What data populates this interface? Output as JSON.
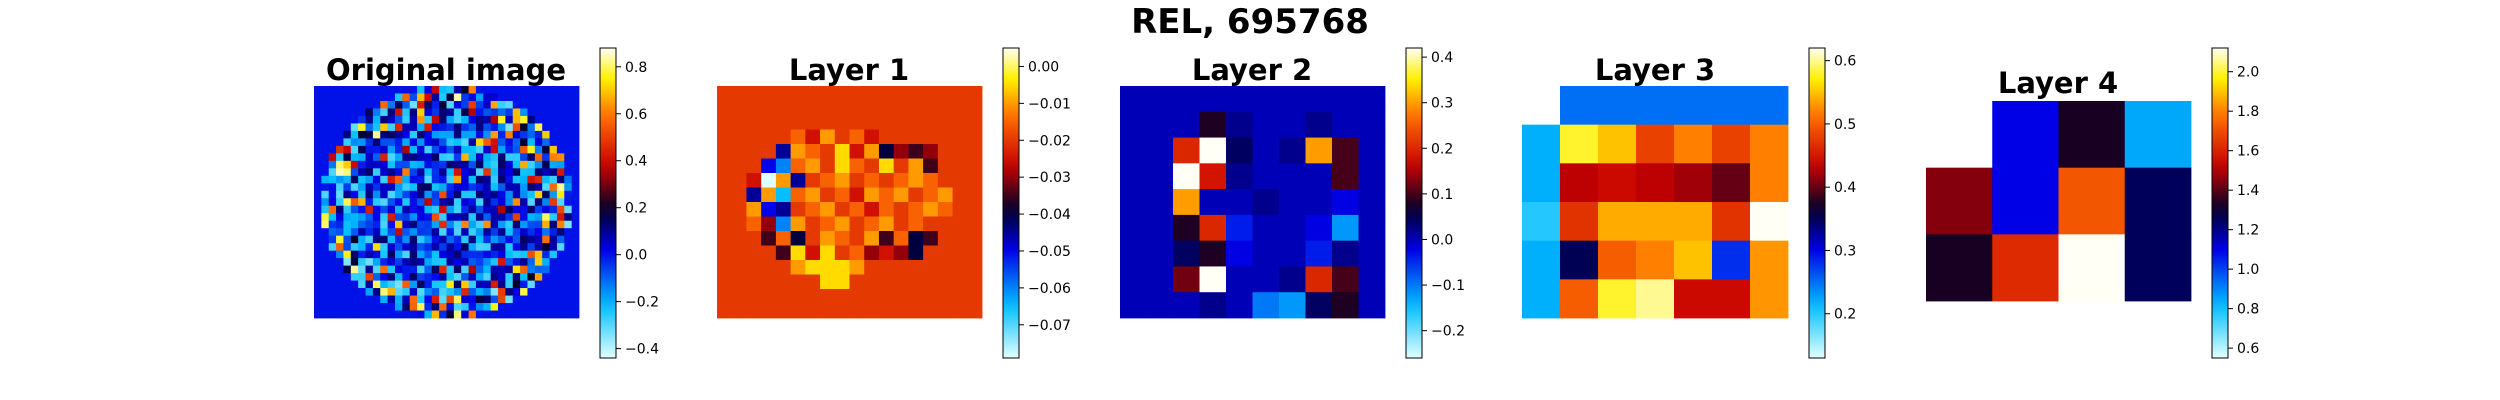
{
  "figure": {
    "title": "REL, 695768"
  },
  "chart_data": [
    {
      "type": "heatmap",
      "title": "Original image",
      "grid_on": false,
      "colorbar": {
        "range": [
          -0.44,
          0.88
        ],
        "ticks": [
          -0.4,
          -0.2,
          0.0,
          0.2,
          0.4,
          0.6,
          0.8
        ],
        "tick_labels": [
          "−0.4",
          "−0.2",
          "0.0",
          "0.2",
          "0.4",
          "0.6",
          "0.8"
        ]
      },
      "background_value": 0.0,
      "rows": 31,
      "cols": 36,
      "values": []
    },
    {
      "type": "heatmap",
      "title": "Layer 1",
      "grid_on": false,
      "colorbar": {
        "range": [
          -0.079,
          0.005
        ],
        "ticks": [
          0.0,
          -0.01,
          -0.02,
          -0.03,
          -0.04,
          -0.05,
          -0.06,
          -0.07
        ],
        "tick_labels": [
          "0.00",
          "−0.01",
          "−0.02",
          "−0.03",
          "−0.04",
          "−0.05",
          "−0.06",
          "−0.07"
        ]
      },
      "rows": 16,
      "cols": 18,
      "values": [
        [
          -0.02,
          -0.02,
          -0.02,
          -0.02,
          -0.02,
          -0.02,
          -0.02,
          -0.02,
          -0.02,
          -0.02,
          -0.02,
          -0.02,
          -0.02,
          -0.02,
          -0.02,
          -0.02,
          -0.02,
          -0.02
        ],
        [
          -0.02,
          -0.02,
          -0.02,
          -0.02,
          -0.02,
          -0.02,
          -0.02,
          -0.02,
          -0.02,
          -0.02,
          -0.02,
          -0.02,
          -0.02,
          -0.02,
          -0.02,
          -0.02,
          -0.02,
          -0.02
        ],
        [
          -0.02,
          -0.02,
          -0.02,
          -0.02,
          -0.02,
          -0.02,
          -0.02,
          -0.02,
          -0.02,
          -0.02,
          -0.02,
          -0.02,
          -0.02,
          -0.02,
          -0.02,
          -0.02,
          -0.02,
          -0.02
        ],
        [
          -0.02,
          -0.02,
          -0.02,
          -0.02,
          -0.02,
          -0.015,
          -0.025,
          -0.01,
          -0.02,
          -0.015,
          -0.025,
          -0.02,
          -0.02,
          -0.02,
          -0.02,
          -0.02,
          -0.02,
          -0.02
        ],
        [
          -0.02,
          -0.02,
          -0.02,
          -0.02,
          -0.045,
          -0.01,
          -0.015,
          -0.02,
          -0.005,
          -0.025,
          -0.01,
          -0.04,
          -0.03,
          -0.035,
          -0.03,
          -0.02,
          -0.02,
          -0.02
        ],
        [
          -0.02,
          -0.02,
          -0.02,
          -0.05,
          -0.06,
          -0.015,
          -0.01,
          -0.02,
          -0.005,
          -0.015,
          -0.02,
          -0.005,
          -0.02,
          -0.01,
          -0.035,
          -0.02,
          -0.02,
          -0.02
        ],
        [
          -0.02,
          -0.02,
          -0.025,
          -0.08,
          -0.01,
          -0.045,
          -0.02,
          -0.015,
          -0.01,
          -0.02,
          -0.015,
          -0.02,
          -0.015,
          -0.01,
          -0.015,
          -0.02,
          -0.02,
          -0.02
        ],
        [
          -0.02,
          -0.02,
          -0.045,
          -0.01,
          -0.065,
          -0.015,
          -0.01,
          -0.02,
          -0.015,
          -0.025,
          -0.01,
          -0.015,
          -0.01,
          -0.02,
          -0.015,
          -0.01,
          -0.02,
          -0.02
        ],
        [
          -0.02,
          -0.02,
          -0.01,
          -0.05,
          -0.045,
          -0.02,
          -0.015,
          -0.01,
          -0.02,
          -0.015,
          -0.025,
          -0.015,
          -0.02,
          -0.015,
          -0.01,
          -0.015,
          -0.02,
          -0.02
        ],
        [
          -0.02,
          -0.02,
          -0.015,
          -0.03,
          -0.06,
          -0.01,
          -0.02,
          -0.015,
          -0.01,
          -0.02,
          -0.015,
          -0.01,
          -0.02,
          -0.015,
          -0.02,
          -0.02,
          -0.02,
          -0.02
        ],
        [
          -0.02,
          -0.02,
          -0.02,
          -0.035,
          -0.015,
          -0.04,
          -0.02,
          -0.01,
          -0.015,
          -0.02,
          -0.01,
          -0.035,
          -0.015,
          -0.04,
          -0.035,
          -0.02,
          -0.02,
          -0.02
        ],
        [
          -0.02,
          -0.02,
          -0.02,
          -0.02,
          -0.035,
          -0.005,
          -0.025,
          -0.005,
          -0.02,
          -0.015,
          -0.03,
          -0.025,
          -0.03,
          -0.04,
          -0.02,
          -0.02,
          -0.02,
          -0.02
        ],
        [
          -0.02,
          -0.02,
          -0.02,
          -0.02,
          -0.02,
          -0.01,
          -0.005,
          -0.005,
          -0.005,
          -0.01,
          -0.02,
          -0.02,
          -0.02,
          -0.02,
          -0.02,
          -0.02,
          -0.02,
          -0.02
        ],
        [
          -0.02,
          -0.02,
          -0.02,
          -0.02,
          -0.02,
          -0.02,
          -0.02,
          -0.005,
          -0.005,
          -0.02,
          -0.02,
          -0.02,
          -0.02,
          -0.02,
          -0.02,
          -0.02,
          -0.02,
          -0.02
        ],
        [
          -0.02,
          -0.02,
          -0.02,
          -0.02,
          -0.02,
          -0.02,
          -0.02,
          -0.02,
          -0.02,
          -0.02,
          -0.02,
          -0.02,
          -0.02,
          -0.02,
          -0.02,
          -0.02,
          -0.02,
          -0.02
        ],
        [
          -0.02,
          -0.02,
          -0.02,
          -0.02,
          -0.02,
          -0.02,
          -0.02,
          -0.02,
          -0.02,
          -0.02,
          -0.02,
          -0.02,
          -0.02,
          -0.02,
          -0.02,
          -0.02,
          -0.02,
          -0.02
        ]
      ]
    },
    {
      "type": "heatmap",
      "title": "Layer 2",
      "grid_on": false,
      "colorbar": {
        "range": [
          -0.26,
          0.42
        ],
        "ticks": [
          -0.2,
          -0.1,
          0.0,
          0.1,
          0.2,
          0.3,
          0.4
        ],
        "tick_labels": [
          "−0.2",
          "−0.1",
          "0.0",
          "0.1",
          "0.2",
          "0.3",
          "0.4"
        ]
      },
      "rows": 9,
      "cols": 10,
      "values": [
        [
          0.0,
          0.0,
          0.0,
          0.0,
          0.0,
          0.0,
          0.0,
          0.0,
          0.0,
          0.0
        ],
        [
          0.0,
          0.0,
          0.0,
          0.08,
          0.02,
          0.0,
          0.0,
          0.02,
          0.0,
          0.0
        ],
        [
          0.0,
          0.0,
          0.2,
          0.42,
          0.04,
          0.0,
          0.02,
          0.3,
          0.1,
          0.0
        ],
        [
          0.0,
          0.0,
          0.42,
          0.18,
          0.02,
          0.0,
          0.0,
          0.0,
          0.1,
          0.0
        ],
        [
          0.0,
          0.0,
          0.3,
          0.0,
          0.0,
          0.02,
          0.0,
          0.0,
          -0.02,
          0.0
        ],
        [
          0.0,
          0.0,
          0.08,
          0.2,
          -0.04,
          0.0,
          0.0,
          -0.02,
          -0.12,
          0.0
        ],
        [
          0.0,
          0.0,
          0.04,
          0.08,
          -0.02,
          0.0,
          0.0,
          -0.04,
          0.02,
          0.0
        ],
        [
          0.0,
          0.0,
          0.12,
          0.42,
          0.0,
          0.0,
          0.02,
          0.2,
          0.1,
          0.0
        ],
        [
          0.0,
          0.0,
          0.0,
          0.02,
          0.0,
          -0.1,
          -0.12,
          0.04,
          0.08,
          0.0
        ]
      ]
    },
    {
      "type": "heatmap",
      "title": "Layer 3",
      "grid_on": false,
      "colorbar": {
        "range": [
          0.13,
          0.62
        ],
        "ticks": [
          0.2,
          0.3,
          0.4,
          0.5,
          0.6
        ],
        "tick_labels": [
          "0.2",
          "0.3",
          "0.4",
          "0.5",
          "0.6"
        ]
      },
      "rows": 6,
      "cols": 7,
      "values": [
        [
          null,
          0.25,
          0.25,
          0.25,
          0.25,
          0.25,
          0.25
        ],
        [
          0.22,
          0.58,
          0.55,
          0.48,
          0.52,
          0.48,
          0.52
        ],
        [
          0.22,
          0.43,
          0.44,
          0.43,
          0.42,
          0.4,
          0.52
        ],
        [
          0.2,
          0.47,
          0.54,
          0.54,
          0.54,
          0.47,
          0.62
        ],
        [
          0.22,
          0.35,
          0.5,
          0.52,
          0.55,
          0.28,
          0.53
        ],
        [
          0.22,
          0.5,
          0.58,
          0.6,
          0.44,
          0.44,
          0.53
        ]
      ]
    },
    {
      "type": "heatmap",
      "title": "Layer 4",
      "grid_on": false,
      "colorbar": {
        "range": [
          0.55,
          2.12
        ],
        "ticks": [
          0.6,
          0.8,
          1.0,
          1.2,
          1.4,
          1.6,
          1.8,
          2.0
        ],
        "tick_labels": [
          "0.6",
          "0.8",
          "1.0",
          "1.2",
          "1.4",
          "1.6",
          "1.8",
          "2.0"
        ]
      },
      "rows": 3,
      "cols": 4,
      "values": [
        [
          null,
          1.1,
          1.33,
          0.85
        ],
        [
          1.45,
          1.1,
          1.72,
          1.25
        ],
        [
          1.33,
          1.62,
          2.12,
          1.25
        ]
      ]
    }
  ]
}
